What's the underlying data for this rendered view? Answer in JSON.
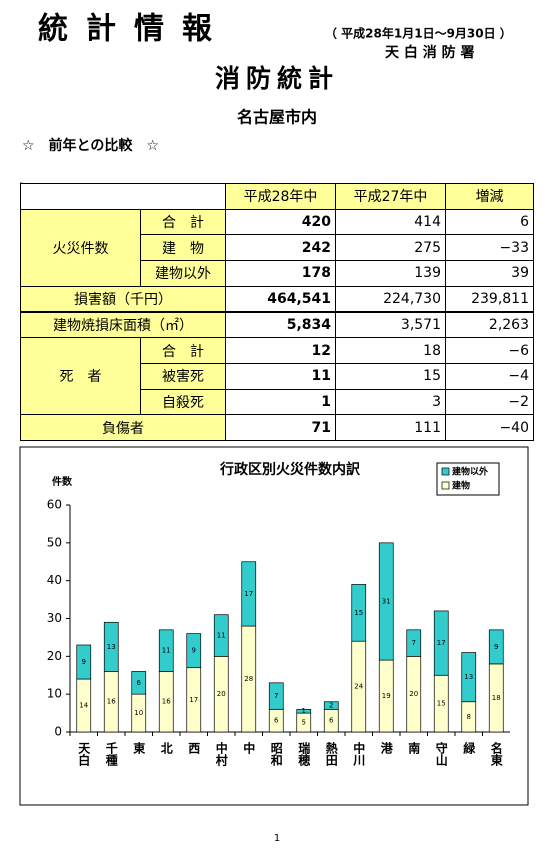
{
  "header": {
    "title": "統計情報",
    "period": "（ 平成28年1月1日～9月30日 ）",
    "station": "天 白 消 防 署",
    "subtitle": "消防統計",
    "region": "名古屋市内",
    "section": "☆　前年との比較　☆"
  },
  "table": {
    "columns": [
      "平成28年中",
      "平成27年中",
      "増減"
    ],
    "rows": [
      {
        "label": "火災件数",
        "rows": [
          {
            "label": "合　計",
            "cells": [
              "420",
              "414",
              "6"
            ]
          },
          {
            "label": "建　物",
            "cells": [
              "242",
              "275",
              "−33"
            ]
          },
          {
            "label": "建物以外",
            "cells": [
              "178",
              "139",
              "39"
            ]
          }
        ]
      },
      {
        "label": "損害額（千円）",
        "cells": [
          "464,541",
          "224,730",
          "239,811"
        ]
      },
      {
        "label": "建物焼損床面積（㎡）",
        "cells": [
          "5,834",
          "3,571",
          "2,263"
        ]
      },
      {
        "label": "死　者",
        "rows": [
          {
            "label": "合　計",
            "cells": [
              "12",
              "18",
              "−6"
            ]
          },
          {
            "label": "被害死",
            "cells": [
              "11",
              "15",
              "−4"
            ]
          },
          {
            "label": "自殺死",
            "cells": [
              "1",
              "3",
              "−2"
            ]
          }
        ]
      },
      {
        "label": "負傷者",
        "cells": [
          "71",
          "111",
          "−40"
        ]
      }
    ]
  },
  "chart_data": {
    "type": "stacked_bar",
    "title": "行政区別火災件数内訳",
    "y_label": "件数",
    "categories": [
      "天白",
      "千種",
      "東",
      "北",
      "西",
      "中村",
      "中",
      "昭和",
      "瑞穂",
      "熱田",
      "中川",
      "港",
      "南",
      "守山",
      "緑",
      "名東"
    ],
    "series": [
      {
        "name": "建物",
        "color": "#ffffcc",
        "values": [
          14,
          16,
          10,
          16,
          17,
          20,
          28,
          6,
          5,
          6,
          24,
          19,
          20,
          15,
          8,
          18
        ]
      },
      {
        "name": "建物以外",
        "color": "#33cccc",
        "values": [
          9,
          13,
          6,
          11,
          9,
          11,
          17,
          7,
          1,
          2,
          15,
          31,
          7,
          17,
          13,
          9
        ]
      }
    ],
    "ylim": [
      0,
      60
    ],
    "yticks": [
      0,
      10,
      20,
      30,
      40,
      50,
      60
    ],
    "grid": false,
    "legend": "top-right"
  },
  "page_number": "1"
}
